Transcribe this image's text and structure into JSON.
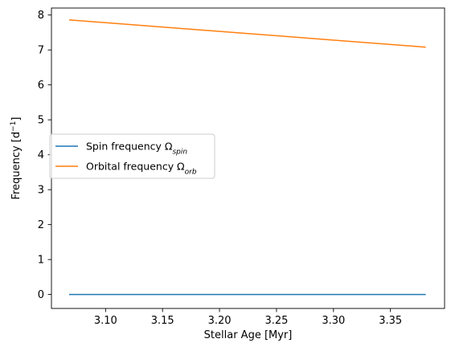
{
  "chart_data": {
    "type": "line",
    "xlabel": "Stellar Age [Myr]",
    "ylabel": {
      "prefix": "Frequency [d",
      "exponent": "−1",
      "suffix": "]"
    },
    "xlim": [
      3.0525,
      3.3975
    ],
    "ylim": [
      -0.4,
      8.2
    ],
    "x_ticks": [
      3.1,
      3.15,
      3.2,
      3.25,
      3.3,
      3.35
    ],
    "x_tick_labels": [
      "3.10",
      "3.15",
      "3.20",
      "3.25",
      "3.30",
      "3.35"
    ],
    "y_ticks": [
      0,
      1,
      2,
      3,
      4,
      5,
      6,
      7,
      8
    ],
    "y_tick_labels": [
      "0",
      "1",
      "2",
      "3",
      "4",
      "5",
      "6",
      "7",
      "8"
    ],
    "grid": false,
    "legend_position": "center-left",
    "series": [
      {
        "name": "Spin frequency Ω",
        "name_sub": "spin",
        "color": "#1f77b4",
        "x": [
          3.068,
          3.381
        ],
        "y": [
          0.0,
          0.0
        ]
      },
      {
        "name": "Orbital frequency Ω",
        "name_sub": "orb",
        "color": "#ff7f0e",
        "x": [
          3.068,
          3.381
        ],
        "y": [
          7.86,
          7.08
        ]
      }
    ]
  }
}
